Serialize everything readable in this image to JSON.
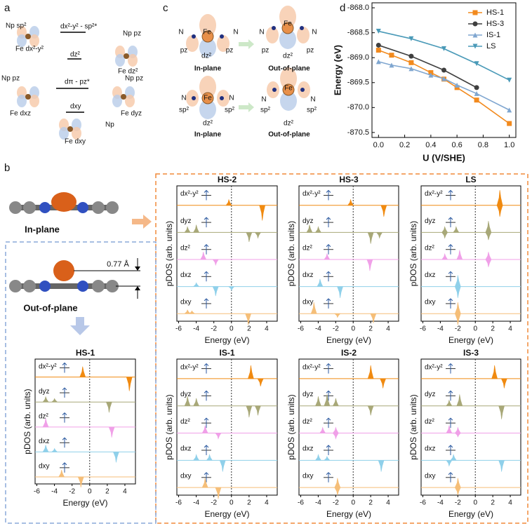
{
  "panel_a": {
    "labels": [
      "a",
      "Np sp²",
      "Fe dx²-y²",
      "dx²-y² - sp²*",
      "dz²",
      "Np pz",
      "Fe dz²",
      "Np pz",
      "dπ - pz*",
      "Np pz",
      "Fe dxz",
      "Fe dyz",
      "dxy",
      "Np",
      "Fe dxy"
    ]
  },
  "panel_c": {
    "labels": [
      "c",
      "N",
      "Fe",
      "N",
      "pz",
      "dz²",
      "pz",
      "In-plane",
      "N",
      "Fe",
      "N",
      "pz",
      "dz²",
      "pz",
      "Out-of-plane",
      "N",
      "Fe",
      "N",
      "sp²",
      "sp²",
      "dz²",
      "In-plane",
      "N",
      "Fe",
      "N",
      "sp²",
      "sp²",
      "dz²",
      "Out-of-plane"
    ]
  },
  "panel_b": {
    "letter": "b",
    "in_plane": "In-plane",
    "distance": "0.77 Å",
    "out_of_plane": "Out-of-plane"
  },
  "chart_data": {
    "type": "line",
    "letter": "d",
    "x_label": "U (V/SHE)",
    "y_label": "Energy (eV)",
    "xlim": [
      -0.05,
      1.05
    ],
    "ylim": [
      -870.6,
      -867.9
    ],
    "xticks": [
      {
        "value": 0,
        "label": "0.0"
      },
      0.2,
      0.4,
      0.6,
      0.8,
      {
        "value": 1,
        "label": "1.0"
      }
    ],
    "yticks": [
      {
        "value": -868,
        "label": "-868.0"
      },
      -868.5,
      {
        "value": -869,
        "label": "-869.0"
      },
      -869.5,
      {
        "value": -870,
        "label": "-870.0"
      },
      -870.5
    ],
    "legend": "upper right",
    "series": [
      {
        "name": "HS-1",
        "color": "#f28a1e",
        "marker": "square",
        "x": [
          0,
          0.1,
          0.25,
          0.4,
          0.5,
          0.6,
          0.75,
          1
        ],
        "values": [
          -868.85,
          -868.95,
          -869.1,
          -869.3,
          -869.43,
          -869.6,
          -869.85,
          -870.32
        ]
      },
      {
        "name": "HS-3",
        "color": "#3f3f3f",
        "marker": "circle",
        "x": [
          0,
          0.25,
          0.5,
          0.75
        ],
        "values": [
          -868.75,
          -868.97,
          -869.25,
          -869.6
        ]
      },
      {
        "name": "IS-1",
        "color": "#7fa6d0",
        "marker": "triangle-up",
        "x": [
          0,
          0.1,
          0.25,
          0.4,
          0.5,
          0.6,
          0.75,
          1
        ],
        "values": [
          -869.08,
          -869.15,
          -869.22,
          -869.35,
          -869.42,
          -869.55,
          -869.72,
          -870.05
        ]
      },
      {
        "name": "LS",
        "color": "#4a9ab8",
        "marker": "triangle-down",
        "x": [
          0,
          0.25,
          0.5,
          0.75,
          1
        ],
        "values": [
          -868.47,
          -868.62,
          -868.82,
          -869.12,
          -869.45
        ]
      }
    ]
  },
  "pdos": {
    "type": "area",
    "ylabel": "pDOS (arb. units)",
    "xlabel": "Energy (eV)",
    "xlim": [
      -6.2,
      5.2
    ],
    "xticks": [
      -6,
      -4,
      -2,
      0,
      2,
      4
    ],
    "orbital_colors": [
      "#f08a10",
      "#a8a878",
      "#f0a0e8",
      "#8fd0ea",
      "#f5be78"
    ],
    "plots": [
      {
        "title": "HS-2",
        "orbitals": [
          {
            "label": "dx²-y²",
            "peaks": [
              [
                -0.3,
                0.3
              ],
              [
                3.5,
                -0.8
              ]
            ]
          },
          {
            "label": "dyz",
            "peaks": [
              [
                -5,
                0.3
              ],
              [
                -4,
                0.4
              ],
              [
                2,
                -0.5
              ],
              [
                3,
                -0.3
              ]
            ]
          },
          {
            "label": "dz²",
            "peaks": [
              [
                -3.2,
                0.4
              ],
              [
                -1.8,
                -0.3
              ]
            ]
          },
          {
            "label": "dxz",
            "peaks": [
              [
                -4,
                0.2
              ],
              [
                -1.8,
                -0.5
              ],
              [
                0,
                -0.2
              ]
            ]
          },
          {
            "label": "dxy",
            "peaks": [
              [
                -5,
                0.2
              ],
              [
                -4.5,
                0.15
              ],
              [
                1.9,
                -0.6
              ]
            ]
          }
        ]
      },
      {
        "title": "HS-3",
        "orbitals": [
          {
            "label": "dx²-y²",
            "peaks": [
              [
                -0.3,
                0.3
              ],
              [
                3.5,
                -0.6
              ]
            ]
          },
          {
            "label": "dyz",
            "peaks": [
              [
                -5,
                0.4
              ],
              [
                -4,
                0.3
              ],
              [
                2,
                -0.6
              ],
              [
                3,
                -0.3
              ]
            ]
          },
          {
            "label": "dz²",
            "peaks": [
              [
                -3,
                0.3
              ],
              [
                1.9,
                -0.6
              ]
            ]
          },
          {
            "label": "dxz",
            "peaks": [
              [
                -3.8,
                0.4
              ],
              [
                -1.5,
                -0.6
              ]
            ]
          },
          {
            "label": "dxy",
            "peaks": [
              [
                -4.5,
                0.6
              ],
              [
                -1.8,
                -0.2
              ],
              [
                2.3,
                -0.5
              ]
            ]
          }
        ]
      },
      {
        "title": "LS",
        "orbitals": [
          {
            "label": "dx²-y²",
            "peaks": [
              [
                2.8,
                0.8
              ],
              [
                2.8,
                -0.6
              ]
            ]
          },
          {
            "label": "dyz",
            "peaks": [
              [
                -3.5,
                0.3
              ],
              [
                -2.2,
                0.3
              ],
              [
                -3.5,
                -0.3
              ],
              [
                1.5,
                0.6
              ],
              [
                1.5,
                -0.4
              ]
            ]
          },
          {
            "label": "dz²",
            "peaks": [
              [
                -3.5,
                0.3
              ],
              [
                -1.8,
                0.5
              ],
              [
                1.5,
                0.4
              ],
              [
                1.5,
                -0.4
              ]
            ]
          },
          {
            "label": "dxz",
            "peaks": [
              [
                -2,
                0.6
              ],
              [
                -2,
                -0.6
              ]
            ]
          },
          {
            "label": "dxy",
            "peaks": [
              [
                -2,
                0.6
              ],
              [
                -2,
                -0.6
              ]
            ]
          }
        ]
      },
      {
        "title": "HS-1",
        "orbitals": [
          {
            "label": "dx²-y²",
            "peaks": [
              [
                -0.8,
                0.6
              ],
              [
                4.5,
                -0.8
              ]
            ]
          },
          {
            "label": "dyz",
            "peaks": [
              [
                -5,
                0.3
              ],
              [
                -4,
                0.2
              ],
              [
                2.2,
                -0.6
              ]
            ]
          },
          {
            "label": "dz²",
            "peaks": [
              [
                -5,
                0.5
              ],
              [
                2.5,
                -0.6
              ]
            ]
          },
          {
            "label": "dxz",
            "peaks": [
              [
                -5,
                0.4
              ],
              [
                -4,
                0.2
              ],
              [
                3,
                -0.6
              ]
            ]
          },
          {
            "label": "dxy",
            "peaks": [
              [
                -3.2,
                0.4
              ],
              [
                -1,
                -0.6
              ]
            ]
          }
        ]
      },
      {
        "title": "IS-1",
        "orbitals": [
          {
            "label": "dx²-y²",
            "peaks": [
              [
                2.2,
                0.7
              ],
              [
                3.3,
                -0.4
              ]
            ]
          },
          {
            "label": "dyz",
            "peaks": [
              [
                -5,
                0.5
              ],
              [
                -4,
                0.4
              ],
              [
                2,
                -0.6
              ],
              [
                3,
                -0.5
              ]
            ]
          },
          {
            "label": "dz²",
            "peaks": [
              [
                -3,
                0.4
              ],
              [
                -1.5,
                -0.3
              ]
            ]
          },
          {
            "label": "dxz",
            "peaks": [
              [
                -4,
                0.3
              ],
              [
                -2.5,
                0.3
              ],
              [
                -1,
                -0.6
              ]
            ]
          },
          {
            "label": "dxy",
            "peaks": [
              [
                -3,
                0.5
              ],
              [
                -1.5,
                -0.6
              ]
            ]
          }
        ]
      },
      {
        "title": "IS-2",
        "orbitals": [
          {
            "label": "dx²-y²",
            "peaks": [
              [
                2,
                0.7
              ],
              [
                3.4,
                -0.5
              ]
            ]
          },
          {
            "label": "dyz",
            "peaks": [
              [
                -4,
                0.5
              ],
              [
                -3,
                0.6
              ],
              [
                -2,
                0.4
              ],
              [
                2,
                -0.5
              ]
            ]
          },
          {
            "label": "dz²",
            "peaks": [
              [
                -3.5,
                0.3
              ],
              [
                -2,
                0.3
              ],
              [
                -2,
                -0.3
              ]
            ]
          },
          {
            "label": "dxz",
            "peaks": [
              [
                -4,
                0.3
              ],
              [
                -3,
                0.2
              ],
              [
                3.2,
                -0.6
              ]
            ]
          },
          {
            "label": "dxy",
            "peaks": [
              [
                -1.8,
                0.5
              ],
              [
                -1.8,
                -0.4
              ]
            ]
          }
        ]
      },
      {
        "title": "IS-3",
        "orbitals": [
          {
            "label": "dx²-y²",
            "peaks": [
              [
                2.2,
                0.7
              ],
              [
                3.3,
                -0.5
              ]
            ]
          },
          {
            "label": "dyz",
            "peaks": [
              [
                -3,
                0.3
              ],
              [
                -1.8,
                0.6
              ],
              [
                3,
                -0.7
              ]
            ]
          },
          {
            "label": "dz²",
            "peaks": [
              [
                -3,
                0.4
              ],
              [
                -2,
                0.3
              ],
              [
                -2,
                -0.2
              ]
            ]
          },
          {
            "label": "dxz",
            "peaks": [
              [
                -2.5,
                0.3
              ],
              [
                -3,
                -0.3
              ],
              [
                3,
                -0.6
              ]
            ]
          },
          {
            "label": "dxy",
            "peaks": [
              [
                -2,
                0.5
              ],
              [
                -2,
                -0.4
              ]
            ]
          }
        ]
      }
    ]
  }
}
